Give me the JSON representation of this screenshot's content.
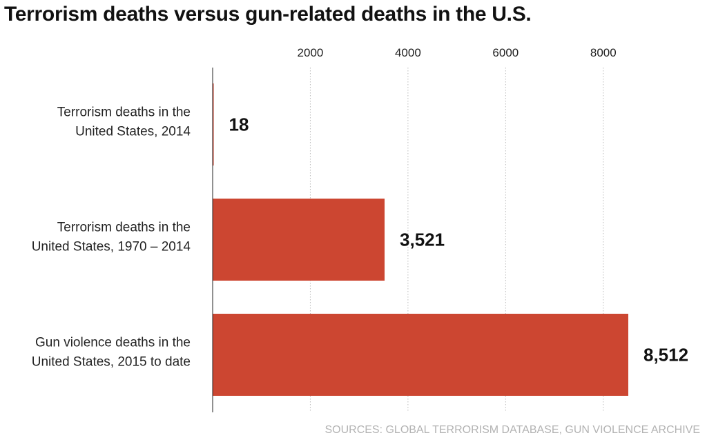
{
  "title": "Terrorism deaths versus gun-related deaths in the U.S.",
  "source": "SOURCES: GLOBAL TERRORISM DATABASE, GUN VIOLENCE ARCHIVE",
  "chart_data": {
    "type": "bar",
    "orientation": "horizontal",
    "title": "Terrorism deaths versus gun-related deaths in the U.S.",
    "categories": [
      [
        "Terrorism deaths in the",
        "United States, 2014"
      ],
      [
        "Terrorism deaths in the",
        "United States, 1970 – 2014"
      ],
      [
        "Gun violence deaths in the",
        "United States, 2015 to date"
      ]
    ],
    "values": [
      18,
      3521,
      8512
    ],
    "value_labels": [
      "18",
      "3,521",
      "8,512"
    ],
    "x_ticks": [
      2000,
      4000,
      6000,
      8000
    ],
    "x_tick_labels": [
      "2000",
      "4000",
      "6000",
      "8000"
    ],
    "xlim": [
      0,
      8512
    ],
    "axis_position": "top",
    "grid": true,
    "grid_style": "dotted",
    "xlabel": "",
    "ylabel": "",
    "bar_color": "#cc4631",
    "grid_color": "#bbbbbb",
    "source": "SOURCES: GLOBAL TERRORISM DATABASE, GUN VIOLENCE ARCHIVE"
  }
}
